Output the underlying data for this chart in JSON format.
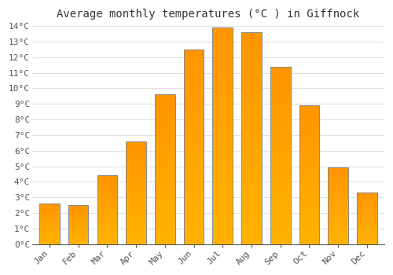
{
  "title": "Average monthly temperatures (°C ) in Giffnock",
  "months": [
    "Jan",
    "Feb",
    "Mar",
    "Apr",
    "May",
    "Jun",
    "Jul",
    "Aug",
    "Sep",
    "Oct",
    "Nov",
    "Dec"
  ],
  "values": [
    2.6,
    2.5,
    4.4,
    6.6,
    9.6,
    12.5,
    13.9,
    13.6,
    11.4,
    8.9,
    4.9,
    3.3
  ],
  "bar_color_bottom": "#FFB300",
  "bar_color_top": "#FF9500",
  "bar_edge_color": "#888888",
  "ylim": [
    0,
    14
  ],
  "yticks": [
    0,
    1,
    2,
    3,
    4,
    5,
    6,
    7,
    8,
    9,
    10,
    11,
    12,
    13,
    14
  ],
  "ytick_labels": [
    "0°C",
    "1°C",
    "2°C",
    "3°C",
    "4°C",
    "5°C",
    "6°C",
    "7°C",
    "8°C",
    "9°C",
    "10°C",
    "11°C",
    "12°C",
    "13°C",
    "14°C"
  ],
  "background_color": "#ffffff",
  "grid_color": "#e0e0e0",
  "title_fontsize": 10,
  "tick_fontsize": 8,
  "bar_width": 0.7
}
